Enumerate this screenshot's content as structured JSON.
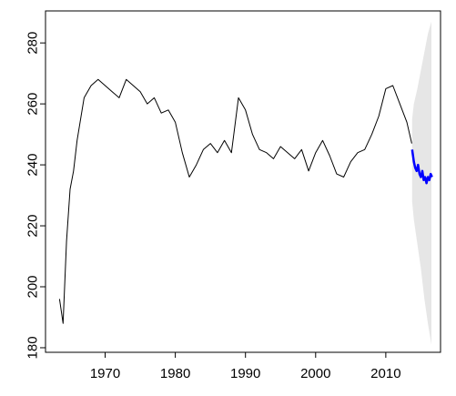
{
  "chart_data": {
    "type": "line",
    "title": "",
    "xlabel": "",
    "ylabel": "",
    "xlim": [
      1961.5,
      2017.8
    ],
    "ylim": [
      178.5,
      290.5
    ],
    "x_ticks": [
      1970,
      1980,
      1990,
      2000,
      2010
    ],
    "x_tick_labels": [
      "1970",
      "1980",
      "1990",
      "2000",
      "2010"
    ],
    "y_ticks": [
      180,
      200,
      220,
      240,
      260,
      280
    ],
    "y_tick_labels": [
      "180",
      "200",
      "220",
      "240",
      "260",
      "280"
    ],
    "grid": false,
    "legend": "none",
    "series": [
      {
        "role": "observed",
        "color": "#000000",
        "x": [
          1963.5,
          1964.0,
          1964.5,
          1965.0,
          1965.5,
          1966.0,
          1967.0,
          1968.0,
          1969.0,
          1970.0,
          1971.0,
          1972.0,
          1973.0,
          1974.0,
          1975.0,
          1976.0,
          1977.0,
          1978.0,
          1979.0,
          1980.0,
          1981.0,
          1982.0,
          1983.0,
          1984.0,
          1985.0,
          1986.0,
          1987.0,
          1988.0,
          1989.0,
          1990.0,
          1991.0,
          1992.0,
          1993.0,
          1994.0,
          1995.0,
          1996.0,
          1997.0,
          1998.0,
          1999.0,
          2000.0,
          2001.0,
          2002.0,
          2003.0,
          2004.0,
          2005.0,
          2006.0,
          2007.0,
          2008.0,
          2009.0,
          2010.0,
          2011.0,
          2012.0,
          2013.0,
          2013.7
        ],
        "y": [
          196,
          188,
          215,
          232,
          238,
          248,
          262,
          266,
          268,
          266,
          264,
          262,
          268,
          266,
          264,
          260,
          262,
          257,
          258,
          254,
          244,
          236,
          240,
          245,
          247,
          244,
          248,
          244,
          262,
          258,
          250,
          245,
          244,
          242,
          246,
          244,
          242,
          245,
          238,
          244,
          248,
          243,
          237,
          236,
          241,
          244,
          245,
          250,
          256,
          265,
          266,
          260,
          254,
          247
        ]
      },
      {
        "role": "forecast",
        "color": "#0000ff",
        "x": [
          2013.75,
          2014.0,
          2014.2,
          2014.4,
          2014.6,
          2014.8,
          2015.0,
          2015.2,
          2015.4,
          2015.6,
          2015.8,
          2016.0,
          2016.2,
          2016.4,
          2016.6
        ],
        "y": [
          245,
          241,
          239,
          238,
          240,
          237,
          236,
          238,
          235,
          236,
          234,
          236,
          235,
          237,
          236
        ]
      }
    ],
    "band": {
      "role": "forecast interval",
      "color": "#e6e6e6",
      "x": [
        2013.75,
        2014.0,
        2014.5,
        2015.0,
        2015.5,
        2016.0,
        2016.5
      ],
      "lower": [
        228,
        222,
        214,
        206,
        196,
        188,
        181
      ],
      "upper": [
        255,
        260,
        265,
        271,
        277,
        283,
        287
      ]
    }
  }
}
